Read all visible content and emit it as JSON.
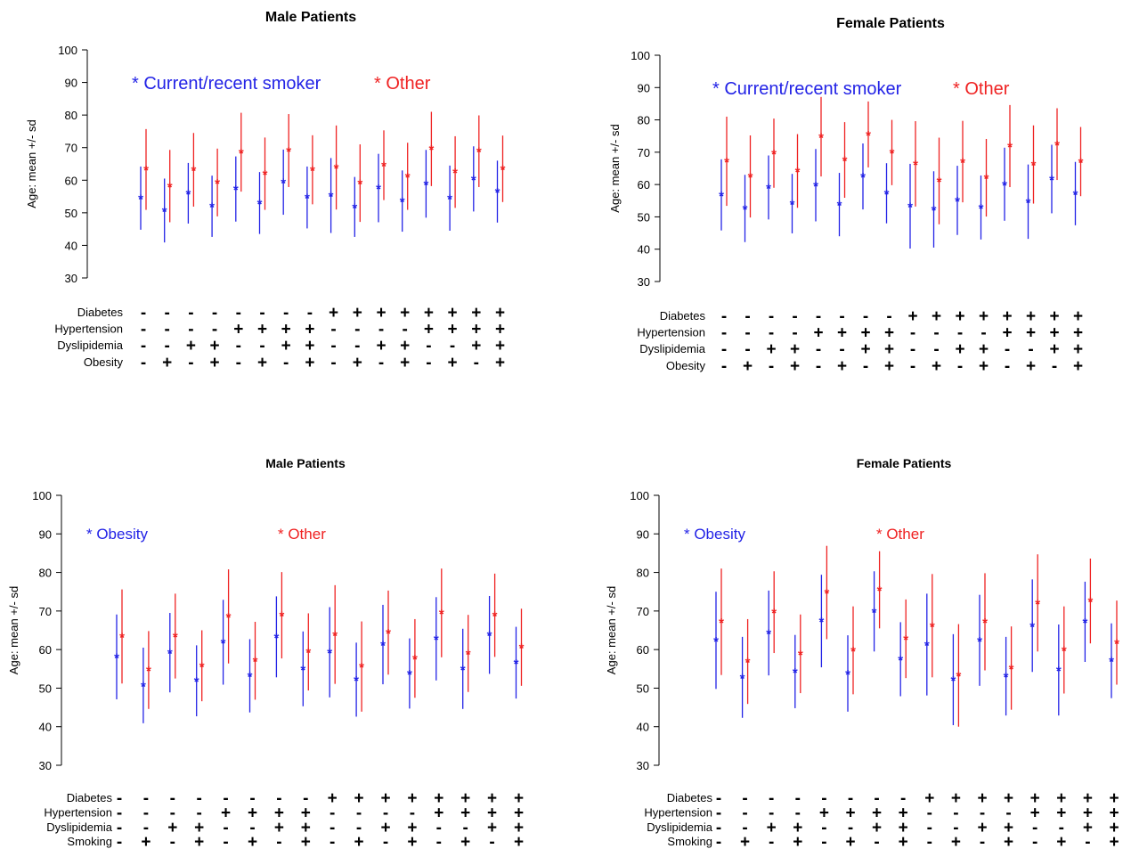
{
  "colors": {
    "series_0": "#2323e6",
    "series_1": "#ef2222",
    "axis": "#000000"
  },
  "chart_data": [
    {
      "type": "scatter",
      "title": "Male Patients",
      "ylabel": "Age: mean +/- sd",
      "ylim": [
        30,
        100
      ],
      "yticks": [
        "30",
        "40",
        "50",
        "60",
        "70",
        "80",
        "90",
        "100"
      ],
      "legend": [
        "* Current/recent smoker",
        "* Other"
      ],
      "legend_position": "top",
      "condition_rows": [
        {
          "label": "Diabetes",
          "signs": [
            "-",
            "-",
            "-",
            "-",
            "-",
            "-",
            "-",
            "-",
            "+",
            "+",
            "+",
            "+",
            "+",
            "+",
            "+",
            "+"
          ]
        },
        {
          "label": "Hypertension",
          "signs": [
            "-",
            "-",
            "-",
            "-",
            "+",
            "+",
            "+",
            "+",
            "-",
            "-",
            "-",
            "-",
            "+",
            "+",
            "+",
            "+"
          ]
        },
        {
          "label": "Dyslipidemia",
          "signs": [
            "-",
            "-",
            "+",
            "+",
            "-",
            "-",
            "+",
            "+",
            "-",
            "-",
            "+",
            "+",
            "-",
            "-",
            "+",
            "+"
          ]
        },
        {
          "label": "Obesity",
          "signs": [
            "-",
            "+",
            "-",
            "+",
            "-",
            "+",
            "-",
            "+",
            "-",
            "+",
            "-",
            "+",
            "-",
            "+",
            "-",
            "+"
          ]
        }
      ],
      "series": [
        {
          "mean": [
            54.5,
            50.7,
            56.0,
            52.0,
            57.3,
            53.0,
            59.4,
            54.7,
            55.3,
            51.8,
            57.6,
            53.6,
            58.9,
            54.5,
            60.4,
            56.5
          ],
          "sd": [
            9.7,
            9.8,
            9.3,
            9.4,
            10.0,
            9.5,
            10.0,
            9.5,
            11.5,
            9.2,
            10.5,
            9.4,
            10.4,
            10.0,
            10.0,
            9.5
          ]
        },
        {
          "mean": [
            63.3,
            58.2,
            63.2,
            59.3,
            68.6,
            62.0,
            69.1,
            63.2,
            63.9,
            59.1,
            64.6,
            61.2,
            69.6,
            62.5,
            68.9,
            63.5
          ],
          "sd": [
            12.4,
            11.1,
            11.3,
            10.4,
            12.1,
            11.1,
            11.2,
            10.6,
            12.9,
            11.9,
            10.7,
            10.3,
            11.4,
            11.0,
            11.0,
            10.2
          ]
        }
      ]
    },
    {
      "type": "scatter",
      "title": "Female Patients",
      "ylabel": "Age: mean +/- sd",
      "ylim": [
        30,
        100
      ],
      "yticks": [
        "30",
        "40",
        "50",
        "60",
        "70",
        "80",
        "90",
        "100"
      ],
      "legend": [
        "* Current/recent smoker",
        "* Other"
      ],
      "legend_position": "top",
      "condition_rows": [
        {
          "label": "Diabetes",
          "signs": [
            "-",
            "-",
            "-",
            "-",
            "-",
            "-",
            "-",
            "-",
            "+",
            "+",
            "+",
            "+",
            "+",
            "+",
            "+",
            "+"
          ]
        },
        {
          "label": "Hypertension",
          "signs": [
            "-",
            "-",
            "-",
            "-",
            "+",
            "+",
            "+",
            "+",
            "-",
            "-",
            "-",
            "-",
            "+",
            "+",
            "+",
            "+"
          ]
        },
        {
          "label": "Dyslipidemia",
          "signs": [
            "-",
            "-",
            "+",
            "+",
            "-",
            "-",
            "+",
            "+",
            "-",
            "-",
            "+",
            "+",
            "-",
            "-",
            "+",
            "+"
          ]
        },
        {
          "label": "Obesity",
          "signs": [
            "-",
            "+",
            "-",
            "+",
            "-",
            "+",
            "-",
            "+",
            "-",
            "+",
            "-",
            "+",
            "-",
            "+",
            "-",
            "+"
          ]
        }
      ],
      "series": [
        {
          "mean": [
            56.8,
            52.6,
            59.1,
            54.1,
            59.8,
            53.8,
            62.5,
            57.3,
            53.3,
            52.3,
            55.1,
            52.9,
            60.1,
            54.7,
            61.7,
            57.2
          ],
          "sd": [
            11.0,
            10.4,
            9.9,
            9.2,
            11.2,
            9.8,
            10.2,
            9.3,
            13.1,
            11.8,
            10.7,
            9.9,
            11.3,
            11.5,
            10.6,
            9.8
          ]
        },
        {
          "mean": [
            67.2,
            62.5,
            69.7,
            64.2,
            74.8,
            67.6,
            75.5,
            69.9,
            66.4,
            61.1,
            67.1,
            62.1,
            71.9,
            66.2,
            72.5,
            67.1
          ],
          "sd": [
            13.8,
            12.7,
            10.7,
            11.4,
            12.3,
            11.7,
            10.2,
            10.1,
            13.2,
            13.4,
            12.6,
            12.0,
            12.7,
            12.1,
            11.1,
            10.7
          ]
        }
      ]
    },
    {
      "type": "scatter",
      "title": "Male Patients",
      "ylabel": "Age: mean +/- sd",
      "ylim": [
        30,
        100
      ],
      "yticks": [
        "30",
        "40",
        "50",
        "60",
        "70",
        "80",
        "90",
        "100"
      ],
      "legend": [
        "* Obesity",
        "* Other"
      ],
      "legend_position": "top",
      "condition_rows": [
        {
          "label": "Diabetes",
          "signs": [
            "-",
            "-",
            "-",
            "-",
            "-",
            "-",
            "-",
            "-",
            "+",
            "+",
            "+",
            "+",
            "+",
            "+",
            "+",
            "+"
          ]
        },
        {
          "label": "Hypertension",
          "signs": [
            "-",
            "-",
            "-",
            "-",
            "+",
            "+",
            "+",
            "+",
            "-",
            "-",
            "-",
            "-",
            "+",
            "+",
            "+",
            "+"
          ]
        },
        {
          "label": "Dyslipidemia",
          "signs": [
            "-",
            "-",
            "+",
            "+",
            "-",
            "-",
            "+",
            "+",
            "-",
            "-",
            "+",
            "+",
            "-",
            "-",
            "+",
            "+"
          ]
        },
        {
          "label": "Smoking",
          "signs": [
            "-",
            "+",
            "-",
            "+",
            "-",
            "+",
            "-",
            "+",
            "-",
            "+",
            "-",
            "+",
            "-",
            "+",
            "-",
            "+"
          ]
        }
      ],
      "series": [
        {
          "mean": [
            58.1,
            50.7,
            59.2,
            51.9,
            61.9,
            53.2,
            63.3,
            55.0,
            59.3,
            52.2,
            61.3,
            53.8,
            62.8,
            55.0,
            63.8,
            56.6
          ],
          "sd": [
            11.0,
            9.8,
            10.3,
            9.2,
            11.0,
            9.5,
            10.5,
            9.7,
            11.7,
            9.6,
            10.3,
            9.1,
            10.8,
            10.4,
            10.1,
            9.3
          ]
        },
        {
          "mean": [
            63.4,
            54.7,
            63.5,
            55.8,
            68.6,
            57.1,
            68.9,
            59.4,
            63.9,
            55.6,
            64.4,
            57.7,
            69.5,
            59.0,
            68.9,
            60.6
          ],
          "sd": [
            12.2,
            10.1,
            11.0,
            9.2,
            12.2,
            10.1,
            11.2,
            10.0,
            12.8,
            11.7,
            10.9,
            10.2,
            11.5,
            10.0,
            10.8,
            10.0
          ]
        }
      ]
    },
    {
      "type": "scatter",
      "title": "Female Patients",
      "ylabel": "Age: mean +/- sd",
      "ylim": [
        30,
        100
      ],
      "yticks": [
        "30",
        "40",
        "50",
        "60",
        "70",
        "80",
        "90",
        "100"
      ],
      "legend": [
        "* Obesity",
        "* Other"
      ],
      "legend_position": "top",
      "condition_rows": [
        {
          "label": "Diabetes",
          "signs": [
            "-",
            "-",
            "-",
            "-",
            "-",
            "-",
            "-",
            "-",
            "+",
            "+",
            "+",
            "+",
            "+",
            "+",
            "+",
            "+"
          ]
        },
        {
          "label": "Hypertension",
          "signs": [
            "-",
            "-",
            "-",
            "-",
            "+",
            "+",
            "+",
            "+",
            "-",
            "-",
            "-",
            "-",
            "+",
            "+",
            "+",
            "+"
          ]
        },
        {
          "label": "Dyslipidemia",
          "signs": [
            "-",
            "-",
            "+",
            "+",
            "-",
            "-",
            "+",
            "+",
            "-",
            "-",
            "+",
            "+",
            "-",
            "-",
            "+",
            "+"
          ]
        },
        {
          "label": "Smoking",
          "signs": [
            "-",
            "+",
            "-",
            "+",
            "-",
            "+",
            "-",
            "+",
            "-",
            "+",
            "-",
            "+",
            "-",
            "+",
            "-",
            "+"
          ]
        }
      ],
      "series": [
        {
          "mean": [
            62.4,
            52.8,
            64.3,
            54.3,
            67.4,
            53.8,
            69.9,
            57.5,
            61.3,
            52.2,
            62.4,
            53.1,
            66.2,
            54.7,
            67.2,
            57.1
          ],
          "sd": [
            12.6,
            10.5,
            11.0,
            9.5,
            12.0,
            9.9,
            10.4,
            9.6,
            13.2,
            11.8,
            11.8,
            10.2,
            12.0,
            11.8,
            10.4,
            9.7
          ]
        },
        {
          "mean": [
            67.2,
            56.9,
            69.7,
            58.9,
            74.8,
            59.8,
            75.5,
            62.8,
            66.2,
            53.3,
            67.2,
            55.2,
            72.1,
            59.9,
            72.6,
            61.8
          ],
          "sd": [
            13.8,
            11.0,
            10.6,
            10.2,
            12.1,
            11.4,
            10.0,
            10.2,
            13.4,
            13.3,
            12.6,
            10.8,
            12.6,
            11.3,
            11.0,
            10.9
          ]
        }
      ]
    }
  ]
}
